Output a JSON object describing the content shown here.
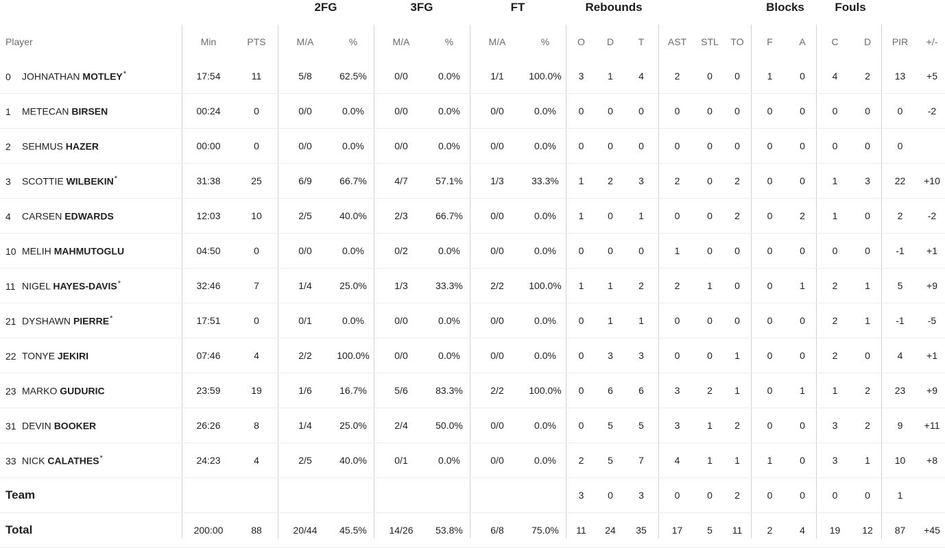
{
  "groups": {
    "fg2": "2FG",
    "fg3": "3FG",
    "ft": "FT",
    "reb": "Rebounds",
    "blk": "Blocks",
    "fouls": "Fouls"
  },
  "columns": {
    "player": "Player",
    "min": "Min",
    "pts": "PTS",
    "fg2_ma": "M/A",
    "fg2_pct": "%",
    "fg3_ma": "M/A",
    "fg3_pct": "%",
    "ft_ma": "M/A",
    "ft_pct": "%",
    "reb_o": "O",
    "reb_d": "D",
    "reb_t": "T",
    "ast": "AST",
    "stl": "STL",
    "to": "TO",
    "blk_f": "F",
    "blk_a": "A",
    "foul_c": "C",
    "foul_d": "D",
    "pir": "PIR",
    "pm": "+/-"
  },
  "players": [
    {
      "num": "0",
      "first": "JOHNATHAN",
      "last": "MOTLEY",
      "star": "*",
      "min": "17:54",
      "pts": "11",
      "fg2": "5/8",
      "fg2p": "62.5%",
      "fg3": "0/0",
      "fg3p": "0.0%",
      "ft": "1/1",
      "ftp": "100.0%",
      "o": "3",
      "d": "1",
      "t": "4",
      "ast": "2",
      "stl": "0",
      "to": "0",
      "bf": "1",
      "ba": "0",
      "fc": "4",
      "fd": "2",
      "pir": "13",
      "pm": "+5"
    },
    {
      "num": "1",
      "first": "METECAN",
      "last": "BIRSEN",
      "star": "",
      "min": "00:24",
      "pts": "0",
      "fg2": "0/0",
      "fg2p": "0.0%",
      "fg3": "0/0",
      "fg3p": "0.0%",
      "ft": "0/0",
      "ftp": "0.0%",
      "o": "0",
      "d": "0",
      "t": "0",
      "ast": "0",
      "stl": "0",
      "to": "0",
      "bf": "0",
      "ba": "0",
      "fc": "0",
      "fd": "0",
      "pir": "0",
      "pm": "-2"
    },
    {
      "num": "2",
      "first": "SEHMUS",
      "last": "HAZER",
      "star": "",
      "min": "00:00",
      "pts": "0",
      "fg2": "0/0",
      "fg2p": "0.0%",
      "fg3": "0/0",
      "fg3p": "0.0%",
      "ft": "0/0",
      "ftp": "0.0%",
      "o": "0",
      "d": "0",
      "t": "0",
      "ast": "0",
      "stl": "0",
      "to": "0",
      "bf": "0",
      "ba": "0",
      "fc": "0",
      "fd": "0",
      "pir": "0",
      "pm": ""
    },
    {
      "num": "3",
      "first": "SCOTTIE",
      "last": "WILBEKIN",
      "star": "*",
      "min": "31:38",
      "pts": "25",
      "fg2": "6/9",
      "fg2p": "66.7%",
      "fg3": "4/7",
      "fg3p": "57.1%",
      "ft": "1/3",
      "ftp": "33.3%",
      "o": "1",
      "d": "2",
      "t": "3",
      "ast": "2",
      "stl": "0",
      "to": "2",
      "bf": "0",
      "ba": "0",
      "fc": "1",
      "fd": "3",
      "pir": "22",
      "pm": "+10"
    },
    {
      "num": "4",
      "first": "CARSEN",
      "last": "EDWARDS",
      "star": "",
      "min": "12:03",
      "pts": "10",
      "fg2": "2/5",
      "fg2p": "40.0%",
      "fg3": "2/3",
      "fg3p": "66.7%",
      "ft": "0/0",
      "ftp": "0.0%",
      "o": "1",
      "d": "0",
      "t": "1",
      "ast": "0",
      "stl": "0",
      "to": "2",
      "bf": "0",
      "ba": "2",
      "fc": "1",
      "fd": "0",
      "pir": "2",
      "pm": "-2"
    },
    {
      "num": "10",
      "first": "MELIH",
      "last": "MAHMUTOGLU",
      "star": "",
      "min": "04:50",
      "pts": "0",
      "fg2": "0/0",
      "fg2p": "0.0%",
      "fg3": "0/2",
      "fg3p": "0.0%",
      "ft": "0/0",
      "ftp": "0.0%",
      "o": "0",
      "d": "0",
      "t": "0",
      "ast": "1",
      "stl": "0",
      "to": "0",
      "bf": "0",
      "ba": "0",
      "fc": "0",
      "fd": "0",
      "pir": "-1",
      "pm": "+1"
    },
    {
      "num": "11",
      "first": "NIGEL",
      "last": "HAYES-DAVIS",
      "star": "*",
      "min": "32:46",
      "pts": "7",
      "fg2": "1/4",
      "fg2p": "25.0%",
      "fg3": "1/3",
      "fg3p": "33.3%",
      "ft": "2/2",
      "ftp": "100.0%",
      "o": "1",
      "d": "1",
      "t": "2",
      "ast": "2",
      "stl": "1",
      "to": "0",
      "bf": "0",
      "ba": "1",
      "fc": "2",
      "fd": "1",
      "pir": "5",
      "pm": "+9"
    },
    {
      "num": "21",
      "first": "DYSHAWN",
      "last": "PIERRE",
      "star": "*",
      "min": "17:51",
      "pts": "0",
      "fg2": "0/1",
      "fg2p": "0.0%",
      "fg3": "0/0",
      "fg3p": "0.0%",
      "ft": "0/0",
      "ftp": "0.0%",
      "o": "0",
      "d": "1",
      "t": "1",
      "ast": "0",
      "stl": "0",
      "to": "0",
      "bf": "0",
      "ba": "0",
      "fc": "2",
      "fd": "1",
      "pir": "-1",
      "pm": "-5"
    },
    {
      "num": "22",
      "first": "TONYE",
      "last": "JEKIRI",
      "star": "",
      "min": "07:46",
      "pts": "4",
      "fg2": "2/2",
      "fg2p": "100.0%",
      "fg3": "0/0",
      "fg3p": "0.0%",
      "ft": "0/0",
      "ftp": "0.0%",
      "o": "0",
      "d": "3",
      "t": "3",
      "ast": "0",
      "stl": "0",
      "to": "1",
      "bf": "0",
      "ba": "0",
      "fc": "2",
      "fd": "0",
      "pir": "4",
      "pm": "+1"
    },
    {
      "num": "23",
      "first": "MARKO",
      "last": "GUDURIC",
      "star": "",
      "min": "23:59",
      "pts": "19",
      "fg2": "1/6",
      "fg2p": "16.7%",
      "fg3": "5/6",
      "fg3p": "83.3%",
      "ft": "2/2",
      "ftp": "100.0%",
      "o": "0",
      "d": "6",
      "t": "6",
      "ast": "3",
      "stl": "2",
      "to": "1",
      "bf": "0",
      "ba": "1",
      "fc": "1",
      "fd": "2",
      "pir": "23",
      "pm": "+9"
    },
    {
      "num": "31",
      "first": "DEVIN",
      "last": "BOOKER",
      "star": "",
      "min": "26:26",
      "pts": "8",
      "fg2": "1/4",
      "fg2p": "25.0%",
      "fg3": "2/4",
      "fg3p": "50.0%",
      "ft": "0/0",
      "ftp": "0.0%",
      "o": "0",
      "d": "5",
      "t": "5",
      "ast": "3",
      "stl": "1",
      "to": "2",
      "bf": "0",
      "ba": "0",
      "fc": "3",
      "fd": "2",
      "pir": "9",
      "pm": "+11"
    },
    {
      "num": "33",
      "first": "NICK",
      "last": "CALATHES",
      "star": "*",
      "min": "24:23",
      "pts": "4",
      "fg2": "2/5",
      "fg2p": "40.0%",
      "fg3": "0/1",
      "fg3p": "0.0%",
      "ft": "0/0",
      "ftp": "0.0%",
      "o": "2",
      "d": "5",
      "t": "7",
      "ast": "4",
      "stl": "1",
      "to": "1",
      "bf": "1",
      "ba": "0",
      "fc": "3",
      "fd": "1",
      "pir": "10",
      "pm": "+8"
    }
  ],
  "team": {
    "label": "Team",
    "o": "3",
    "d": "0",
    "t": "3",
    "ast": "0",
    "stl": "0",
    "to": "2",
    "bf": "0",
    "ba": "0",
    "fc": "0",
    "fd": "0",
    "pir": "1"
  },
  "total": {
    "label": "Total",
    "min": "200:00",
    "pts": "88",
    "fg2": "20/44",
    "fg2p": "45.5%",
    "fg3": "14/26",
    "fg3p": "53.8%",
    "ft": "6/8",
    "ftp": "75.0%",
    "o": "11",
    "d": "24",
    "t": "35",
    "ast": "17",
    "stl": "5",
    "to": "11",
    "bf": "2",
    "ba": "4",
    "fc": "19",
    "fd": "12",
    "pir": "87",
    "pm": "+45"
  }
}
